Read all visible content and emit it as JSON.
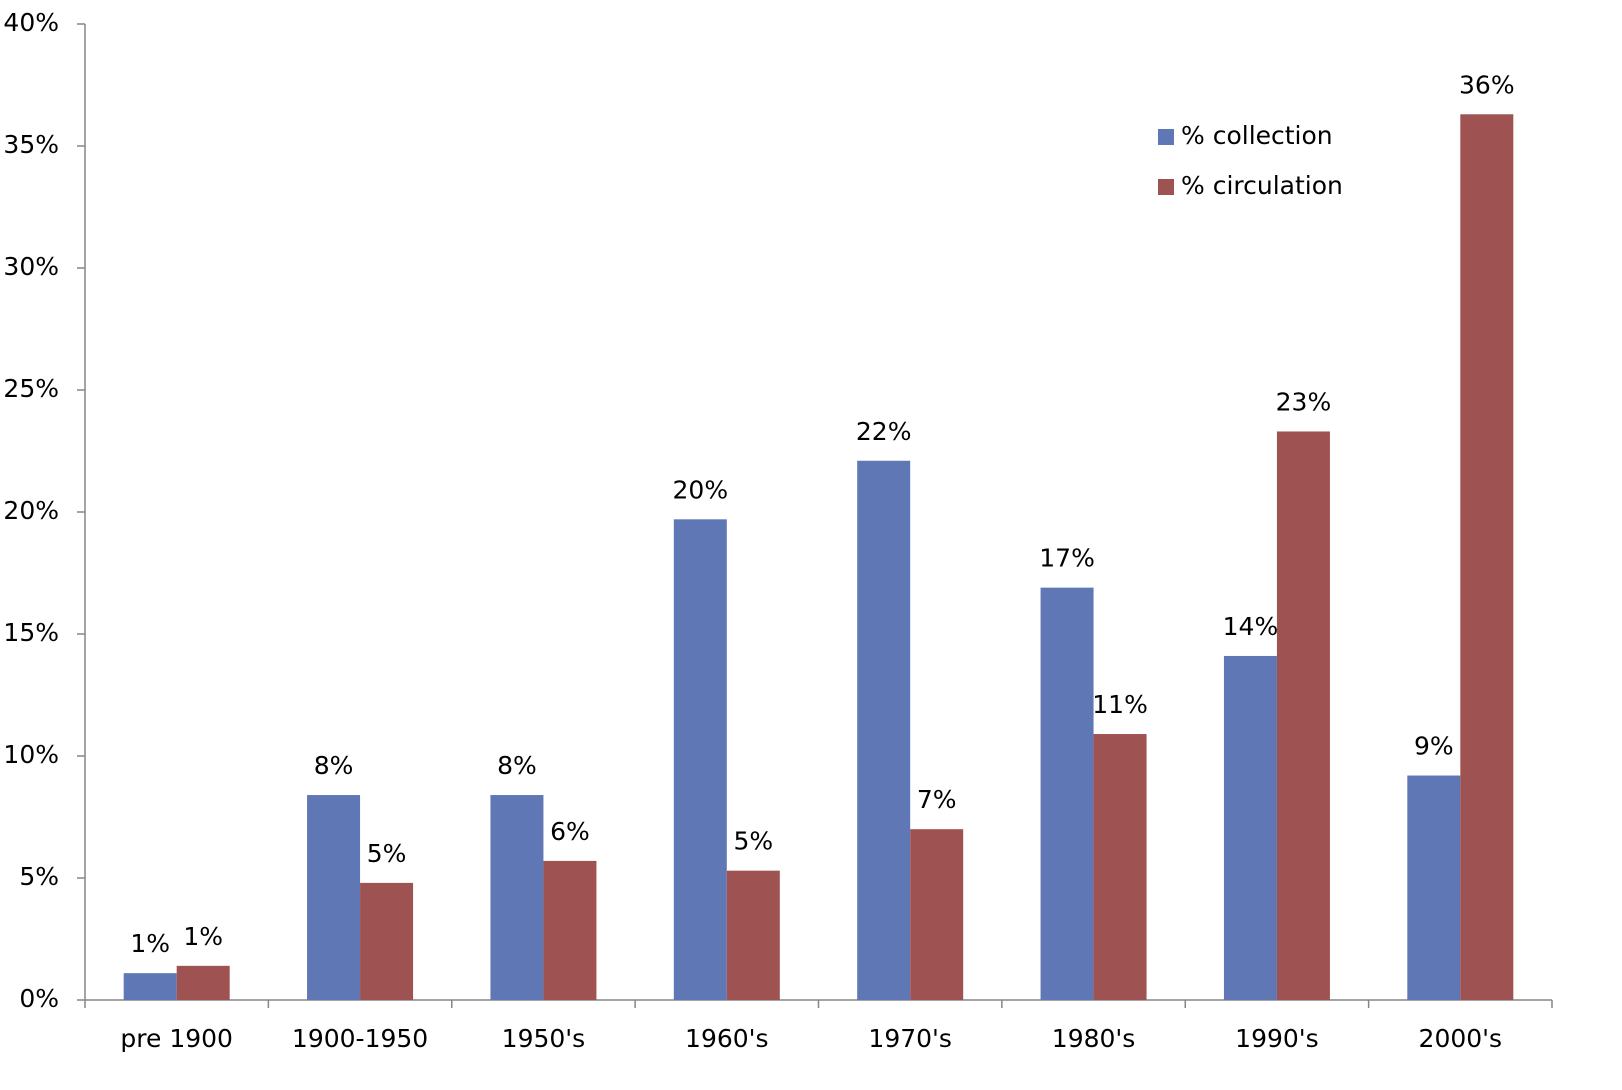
{
  "chart_data": {
    "type": "bar",
    "categories": [
      "pre 1900",
      "1900-1950",
      "1950's",
      "1960's",
      "1970's",
      "1980's",
      "1990's",
      "2000's"
    ],
    "series": [
      {
        "name": "% collection",
        "color": "#6077b5",
        "values": [
          1.1,
          8.4,
          8.4,
          19.7,
          22.1,
          16.9,
          14.1,
          9.2
        ],
        "value_labels": [
          "1%",
          "8%",
          "8%",
          "20%",
          "22%",
          "17%",
          "14%",
          "9%"
        ]
      },
      {
        "name": "% circulation",
        "color": "#9e5252",
        "values": [
          1.4,
          4.8,
          5.7,
          5.3,
          7.0,
          10.9,
          23.3,
          36.3
        ],
        "value_labels": [
          "1%",
          "5%",
          "6%",
          "5%",
          "7%",
          "11%",
          "23%",
          "36%"
        ]
      }
    ],
    "ylim": [
      0,
      40
    ],
    "yticks": [
      {
        "value": 0,
        "label": "0%"
      },
      {
        "value": 5,
        "label": "5%"
      },
      {
        "value": 10,
        "label": "10%"
      },
      {
        "value": 15,
        "label": "15%"
      },
      {
        "value": 20,
        "label": "20%"
      },
      {
        "value": 25,
        "label": "25%"
      },
      {
        "value": 30,
        "label": "30%"
      },
      {
        "value": 35,
        "label": "35%"
      },
      {
        "value": 40,
        "label": "40%"
      }
    ],
    "legend": "top-right"
  }
}
